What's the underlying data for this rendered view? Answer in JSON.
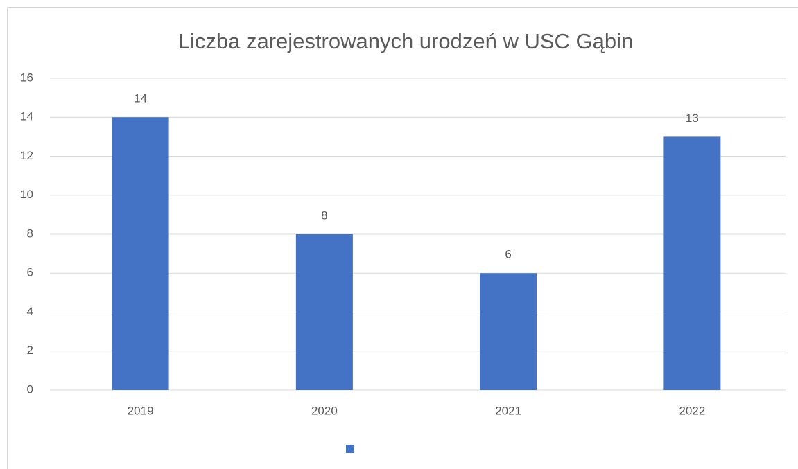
{
  "chart_data": {
    "type": "bar",
    "title": "Liczba zarejestrowanych urodzeń w USC Gąbin",
    "categories": [
      "2019",
      "2020",
      "2021",
      "2022"
    ],
    "values": [
      14,
      8,
      6,
      13
    ],
    "color": "#4472c4",
    "ylim": [
      0,
      16
    ],
    "yticks": [
      0,
      2,
      4,
      6,
      8,
      10,
      12,
      14,
      16
    ],
    "grid": true,
    "data_labels": true,
    "legend": "bottom"
  }
}
